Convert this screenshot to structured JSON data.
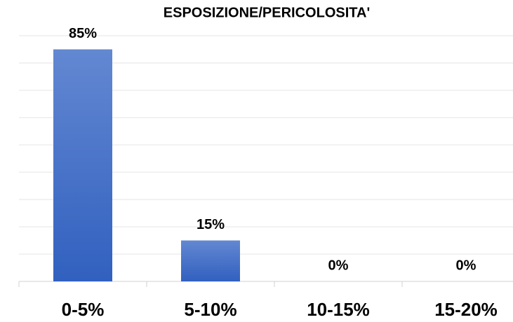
{
  "chart_data": {
    "type": "bar",
    "title": "ESPOSIZIONE/PERICOLOSITA'",
    "categories": [
      "0-5%",
      "5-10%",
      "10-15%",
      "15-20%"
    ],
    "values": [
      85,
      15,
      0,
      0
    ],
    "value_labels": [
      "85%",
      "15%",
      "0%",
      "0%"
    ],
    "color": "#4472c4",
    "ylim": [
      0,
      90
    ],
    "yticks": [
      0,
      10,
      20,
      30,
      40,
      50,
      60,
      70,
      80,
      90
    ],
    "grid": true
  }
}
